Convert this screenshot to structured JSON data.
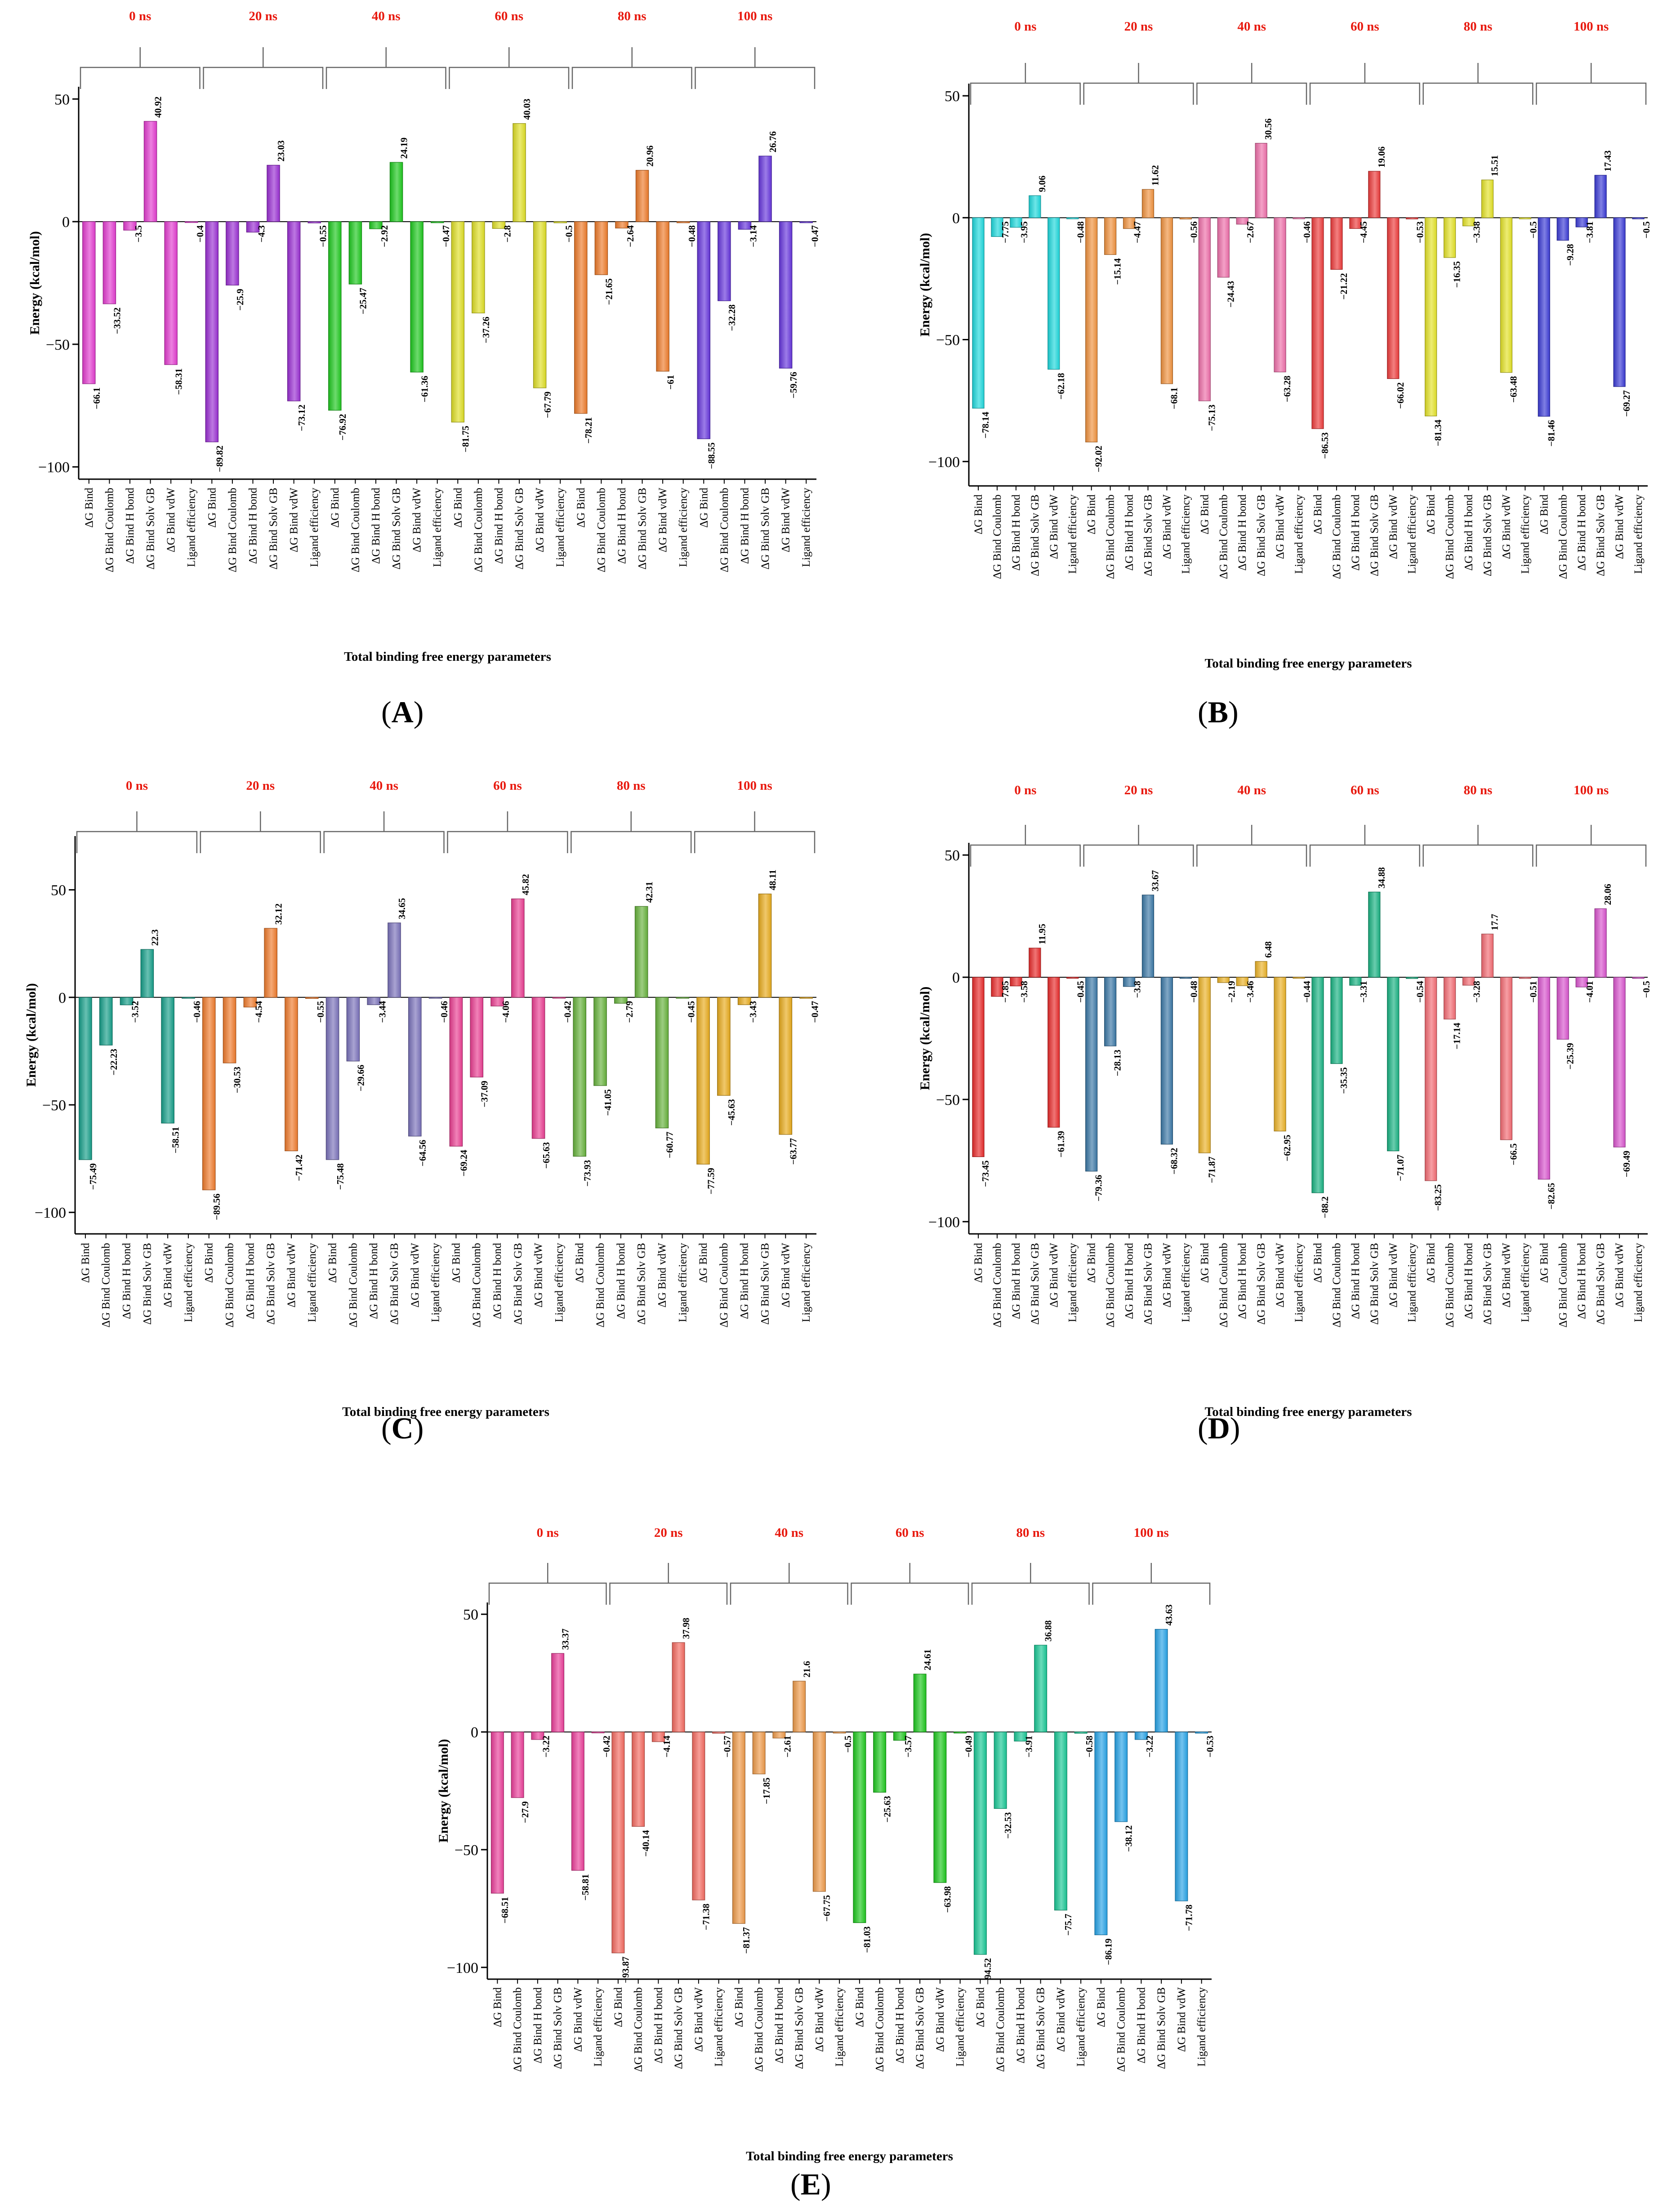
{
  "figure": {
    "categories": [
      "ΔG Bind",
      "ΔG Bind Coulomb",
      "ΔG Bind H bond",
      "ΔG Bind Solv GB",
      "ΔG Bind vdW",
      "Ligand efficiency"
    ],
    "group_labels": [
      "0 ns",
      "20 ns",
      "40 ns",
      "60 ns",
      "80 ns",
      "100 ns"
    ],
    "xlabel": "Total binding free energy parameters",
    "ylabel": "Energy (kcal/mol)",
    "yticks": [
      -100,
      -50,
      0,
      50
    ],
    "group_label_color": "#e8190e"
  },
  "chart_data": [
    {
      "type": "bar",
      "panel": "A",
      "caption": "A",
      "ylim": [
        -105,
        55
      ],
      "groups": [
        {
          "label": "0 ns",
          "color": "#e23ccf",
          "values": [
            -66.1,
            -33.52,
            -3.5,
            40.92,
            -58.31,
            -0.4
          ]
        },
        {
          "label": "20 ns",
          "color": "#9a2fd3",
          "values": [
            -89.82,
            -25.9,
            -4.3,
            23.03,
            -73.12,
            -0.55
          ]
        },
        {
          "label": "40 ns",
          "color": "#1ec81f",
          "values": [
            -76.92,
            -25.47,
            -2.92,
            24.19,
            -61.36,
            -0.47
          ]
        },
        {
          "label": "60 ns",
          "color": "#dede25",
          "values": [
            -81.75,
            -37.26,
            -2.8,
            40.03,
            -67.79,
            -0.5
          ]
        },
        {
          "label": "80 ns",
          "color": "#ee7b2a",
          "values": [
            -78.21,
            -21.65,
            -2.64,
            20.96,
            -61,
            -0.48
          ]
        },
        {
          "label": "100 ns",
          "color": "#6636dc",
          "values": [
            -88.55,
            -32.28,
            -3.14,
            26.76,
            -59.76,
            -0.47
          ]
        }
      ]
    },
    {
      "type": "bar",
      "panel": "B",
      "caption": "B",
      "ylim": [
        -110,
        55
      ],
      "groups": [
        {
          "label": "0 ns",
          "color": "#1ed8dc",
          "values": [
            -78.14,
            -7.75,
            -3.95,
            9.06,
            -62.18,
            -0.48
          ]
        },
        {
          "label": "20 ns",
          "color": "#f0923e",
          "values": [
            -92.02,
            -15.14,
            -4.47,
            11.62,
            -68.1,
            -0.56
          ]
        },
        {
          "label": "40 ns",
          "color": "#ee6fa9",
          "values": [
            -75.13,
            -24.43,
            -2.67,
            30.56,
            -63.28,
            -0.46
          ]
        },
        {
          "label": "60 ns",
          "color": "#ed3b3b",
          "values": [
            -86.53,
            -21.22,
            -4.45,
            19.06,
            -66.02,
            -0.53
          ]
        },
        {
          "label": "80 ns",
          "color": "#e3e228",
          "values": [
            -81.34,
            -16.35,
            -3.38,
            15.51,
            -63.48,
            -0.5
          ]
        },
        {
          "label": "100 ns",
          "color": "#3b3bd6",
          "values": [
            -81.46,
            -9.28,
            -3.81,
            17.43,
            -69.27,
            -0.5
          ]
        }
      ]
    },
    {
      "type": "bar",
      "panel": "C",
      "caption": "C",
      "ylim": [
        -110,
        75
      ],
      "groups": [
        {
          "label": "0 ns",
          "color": "#169e89",
          "values": [
            -75.49,
            -22.23,
            -3.52,
            22.3,
            -58.51,
            -0.46
          ]
        },
        {
          "label": "20 ns",
          "color": "#ef7b2c",
          "values": [
            -89.56,
            -30.53,
            -4.54,
            32.12,
            -71.42,
            -0.55
          ]
        },
        {
          "label": "40 ns",
          "color": "#7a72ba",
          "values": [
            -75.48,
            -29.66,
            -3.44,
            34.65,
            -64.56,
            -0.46
          ]
        },
        {
          "label": "60 ns",
          "color": "#ea3f92",
          "values": [
            -69.24,
            -37.09,
            -4.06,
            45.82,
            -65.63,
            -0.42
          ]
        },
        {
          "label": "80 ns",
          "color": "#66b23c",
          "values": [
            -73.93,
            -41.05,
            -2.79,
            42.31,
            -60.77,
            -0.45
          ]
        },
        {
          "label": "100 ns",
          "color": "#e8aa1c",
          "values": [
            -77.59,
            -45.63,
            -3.43,
            48.11,
            -63.77,
            -0.47
          ]
        }
      ]
    },
    {
      "type": "bar",
      "panel": "D",
      "caption": "D",
      "ylim": [
        -105,
        55
      ],
      "groups": [
        {
          "label": "0 ns",
          "color": "#e82b2b",
          "values": [
            -73.45,
            -7.85,
            -3.58,
            11.95,
            -61.39,
            -0.45
          ]
        },
        {
          "label": "20 ns",
          "color": "#3b78a6",
          "values": [
            -79.36,
            -28.13,
            -3.8,
            33.67,
            -68.32,
            -0.48
          ]
        },
        {
          "label": "40 ns",
          "color": "#ebb227",
          "values": [
            -71.87,
            -2.19,
            -3.46,
            6.48,
            -62.95,
            -0.44
          ]
        },
        {
          "label": "60 ns",
          "color": "#19b282",
          "values": [
            -88.2,
            -35.35,
            -3.31,
            34.88,
            -71.07,
            -0.54
          ]
        },
        {
          "label": "80 ns",
          "color": "#f36b73",
          "values": [
            -83.25,
            -17.14,
            -3.28,
            17.7,
            -66.5,
            -0.51
          ]
        },
        {
          "label": "100 ns",
          "color": "#d854cd",
          "values": [
            -82.65,
            -25.39,
            -4.01,
            28.06,
            -69.49,
            -0.5
          ]
        }
      ]
    },
    {
      "type": "bar",
      "panel": "E",
      "caption": "E",
      "ylim": [
        -105,
        55
      ],
      "groups": [
        {
          "label": "0 ns",
          "color": "#ea3f99",
          "values": [
            -68.51,
            -27.9,
            -3.22,
            33.37,
            -58.81,
            -0.42
          ]
        },
        {
          "label": "20 ns",
          "color": "#f36a60",
          "values": [
            -93.87,
            -40.14,
            -4.14,
            37.98,
            -71.38,
            -0.57
          ]
        },
        {
          "label": "40 ns",
          "color": "#ee9a4a",
          "values": [
            -81.37,
            -17.85,
            -2.61,
            21.6,
            -67.75,
            -0.5
          ]
        },
        {
          "label": "60 ns",
          "color": "#1ec81f",
          "values": [
            -81.03,
            -25.63,
            -3.57,
            24.61,
            -63.98,
            -0.49
          ]
        },
        {
          "label": "80 ns",
          "color": "#19c795",
          "values": [
            -94.52,
            -32.53,
            -3.91,
            36.88,
            -75.7,
            -0.58
          ]
        },
        {
          "label": "100 ns",
          "color": "#27a3e6",
          "values": [
            -86.19,
            -38.12,
            -3.22,
            43.63,
            -71.78,
            -0.53
          ]
        }
      ]
    }
  ]
}
